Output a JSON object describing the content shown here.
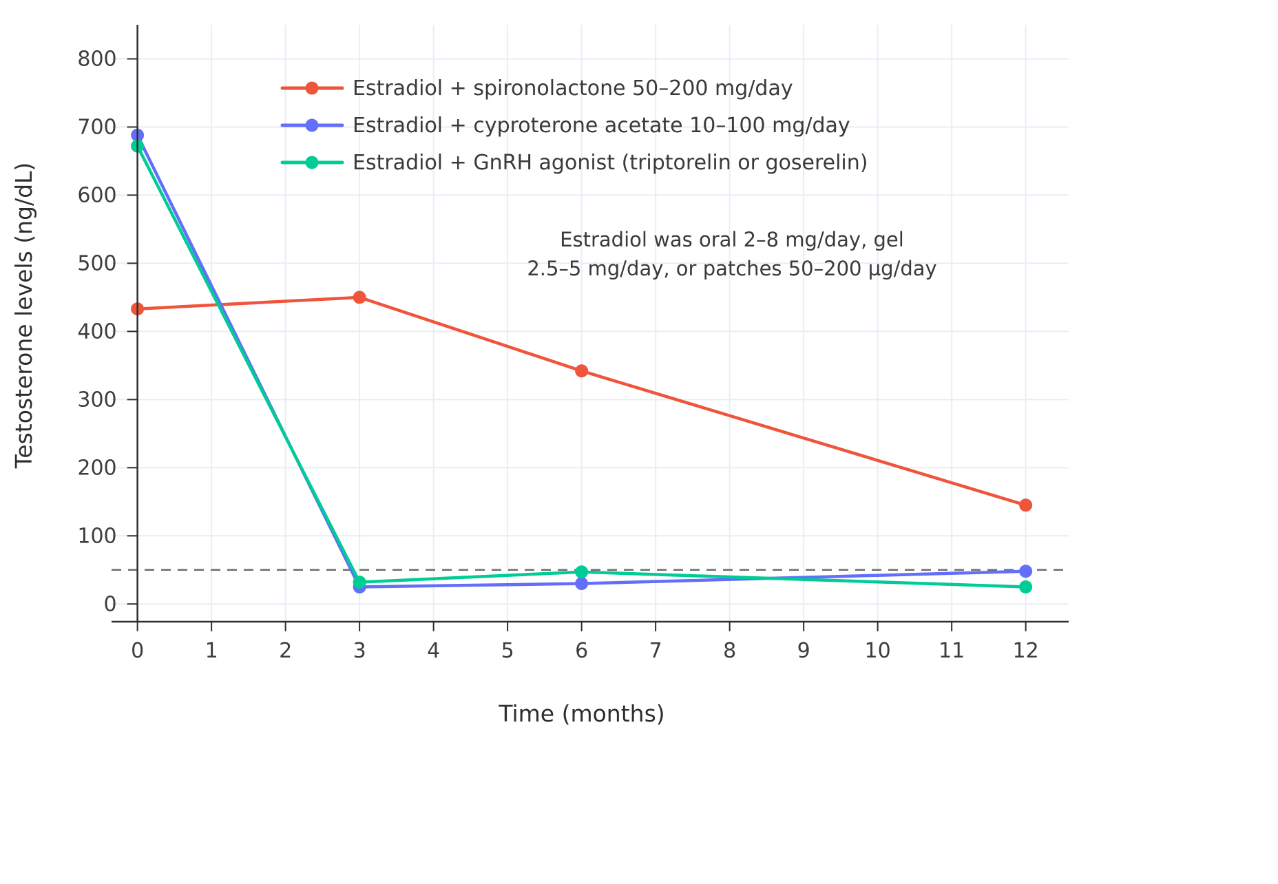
{
  "chart_data": {
    "type": "line",
    "title": "",
    "xlabel": "Time (months)",
    "ylabel": "Testosterone levels (ng/dL)",
    "x": [
      0,
      3,
      6,
      12
    ],
    "series": [
      {
        "name": "Estradiol + spironolactone 50–200 mg/day",
        "color": "#EF553B",
        "values": [
          433,
          450,
          342,
          145
        ]
      },
      {
        "name": "Estradiol + cyproterone acetate 10–100 mg/day",
        "color": "#636EFA",
        "values": [
          688,
          25,
          30,
          48
        ]
      },
      {
        "name": "Estradiol + GnRH agonist (triptorelin or goserelin)",
        "color": "#00CC96",
        "values": [
          672,
          32,
          47,
          25
        ]
      }
    ],
    "xticks": [
      0,
      1,
      2,
      3,
      4,
      5,
      6,
      7,
      8,
      9,
      10,
      11,
      12
    ],
    "yticks": [
      0,
      100,
      200,
      300,
      400,
      500,
      600,
      700,
      800
    ],
    "xlim": [
      -0.35,
      12.58
    ],
    "ylim": [
      -26,
      850
    ],
    "grid": true,
    "legend_position": "inside-top-left",
    "reference_line": {
      "y": 50,
      "style": "dashed"
    },
    "annotation_lines": [
      "Estradiol was oral 2–8 mg/day, gel",
      "2.5–5 mg/day, or patches 50–200 µg/day"
    ],
    "colors": {
      "grid": "#e8eef6",
      "axis": "#2e2e2e",
      "tick_text": "#3d3d3d",
      "annotation_text": "#3a3a3a",
      "reference": "#6e6e6e",
      "background": "#ffffff"
    }
  }
}
